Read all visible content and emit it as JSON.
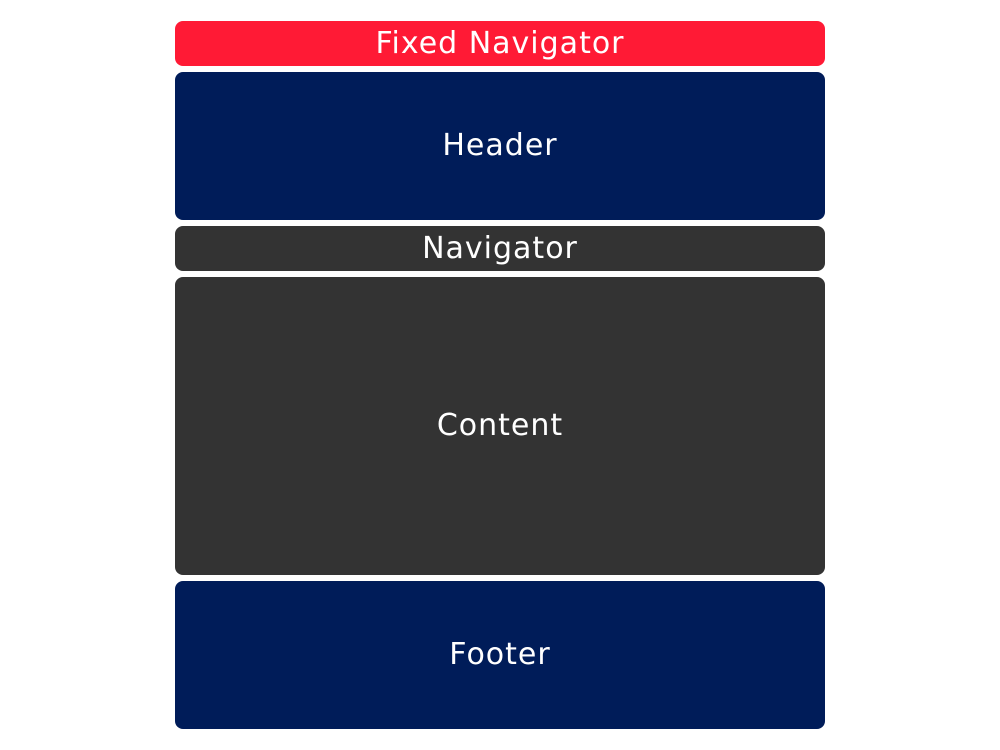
{
  "blocks": {
    "fixed_navigator": {
      "label": "Fixed Navigator",
      "color": "#ff1a35"
    },
    "header": {
      "label": "Header",
      "color": "#001c59"
    },
    "navigator": {
      "label": "Navigator",
      "color": "#333333"
    },
    "content": {
      "label": "Content",
      "color": "#333333"
    },
    "footer": {
      "label": "Footer",
      "color": "#001c59"
    }
  }
}
